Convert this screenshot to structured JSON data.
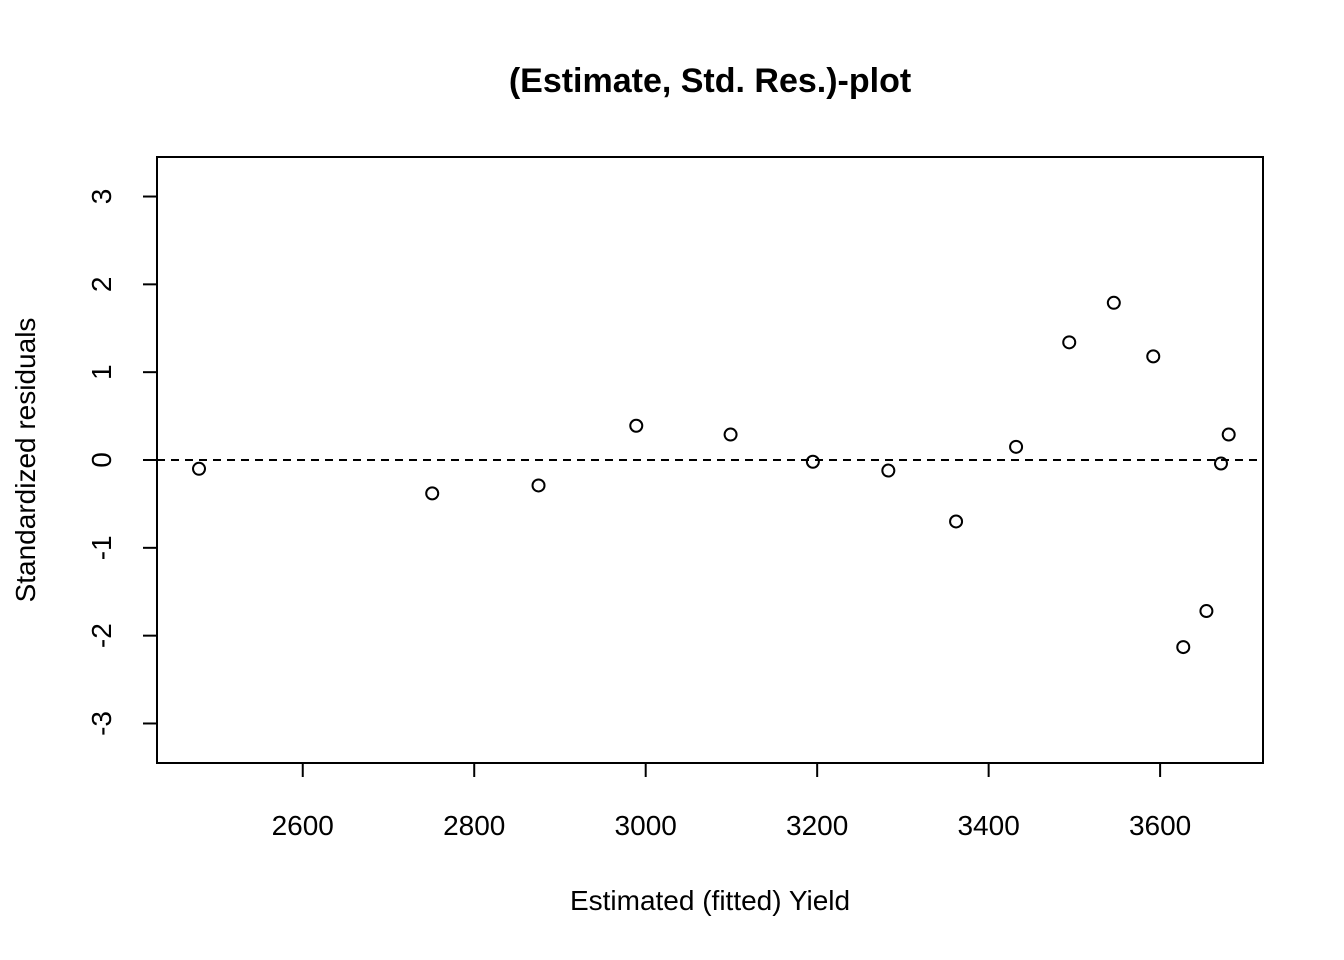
{
  "chart_data": {
    "type": "scatter",
    "title": "(Estimate, Std. Res.)-plot",
    "xlabel": "Estimated (fitted) Yield",
    "ylabel": "Standardized residuals",
    "xlim": [
      2430,
      3720
    ],
    "ylim": [
      -3.45,
      3.45
    ],
    "x_ticks": [
      2600,
      2800,
      3000,
      3200,
      3400,
      3600
    ],
    "y_ticks": [
      -3,
      -2,
      -1,
      0,
      1,
      2,
      3
    ],
    "reference_line": {
      "y": 0,
      "style": "dashed"
    },
    "grid": false,
    "points": [
      {
        "x": 2479,
        "y": -0.1
      },
      {
        "x": 2751,
        "y": -0.38
      },
      {
        "x": 2875,
        "y": -0.29
      },
      {
        "x": 2989,
        "y": 0.39
      },
      {
        "x": 3099,
        "y": 0.29
      },
      {
        "x": 3195,
        "y": -0.02
      },
      {
        "x": 3283,
        "y": -0.12
      },
      {
        "x": 3362,
        "y": -0.7
      },
      {
        "x": 3432,
        "y": 0.15
      },
      {
        "x": 3494,
        "y": 1.34
      },
      {
        "x": 3546,
        "y": 1.79
      },
      {
        "x": 3592,
        "y": 1.18
      },
      {
        "x": 3627,
        "y": -2.13
      },
      {
        "x": 3654,
        "y": -1.72
      },
      {
        "x": 3671,
        "y": -0.04
      },
      {
        "x": 3680,
        "y": 0.29
      }
    ]
  }
}
